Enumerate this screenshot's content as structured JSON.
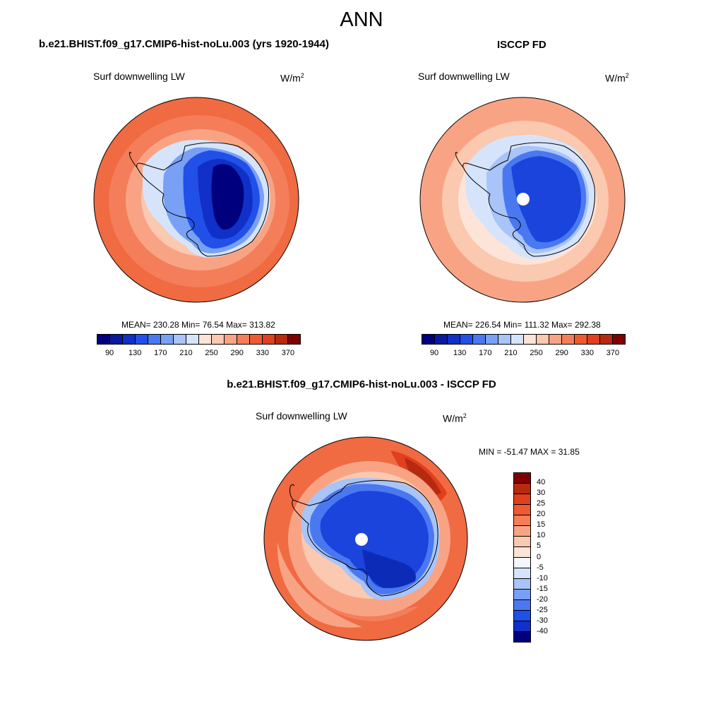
{
  "title": "ANN",
  "panels": [
    {
      "case_title": "b.e21.BHIST.f09_g17.CMIP6-hist-noLu.003 (yrs 1920-1944)",
      "variable": "Surf downwelling LW",
      "units": "W/m",
      "units_sup": "2",
      "stats": "MEAN= 230.28  Min=  76.54  Max= 313.82"
    },
    {
      "case_title": "ISCCP FD",
      "variable": "Surf downwelling LW",
      "units": "W/m",
      "units_sup": "2",
      "stats": "MEAN= 226.54  Min= 111.32  Max= 292.38"
    },
    {
      "case_title": "b.e21.BHIST.f09_g17.CMIP6-hist-noLu.003 - ISCCP FD",
      "variable": "Surf downwelling LW",
      "units": "W/m",
      "units_sup": "2",
      "stats": "MIN = -51.47 MAX =  31.85"
    }
  ],
  "colorbar_abs": {
    "labels": [
      "90",
      "130",
      "170",
      "210",
      "250",
      "290",
      "330",
      "370"
    ],
    "colors": [
      "#00007f",
      "#0a1aa0",
      "#1030c8",
      "#2050e8",
      "#4a78f0",
      "#78a0f5",
      "#a8c4f8",
      "#d6e4fb",
      "#fde4d8",
      "#fbc8b0",
      "#f8a484",
      "#f47e5a",
      "#f05a32",
      "#e0401e",
      "#b82a10",
      "#7f0000"
    ]
  },
  "colorbar_diff": {
    "labels": [
      "40",
      "30",
      "25",
      "20",
      "15",
      "10",
      "5",
      "0",
      "-5",
      "-10",
      "-15",
      "-20",
      "-25",
      "-30",
      "-40"
    ],
    "colors": [
      "#7f0000",
      "#b82a10",
      "#e0401e",
      "#f05a32",
      "#f47e5a",
      "#f8a484",
      "#fbc8b0",
      "#fde4d8",
      "#f4f6fe",
      "#d6e4fb",
      "#a8c4f8",
      "#78a0f5",
      "#4a78f0",
      "#2050e8",
      "#1030c8",
      "#00007f"
    ]
  },
  "colors": {
    "coastline": "#000000",
    "ocean_outer": "#f06a42",
    "ocean_mid": "#f8a484",
    "ocean_inner": "#fbc8b0",
    "pole_hole": "#ffffff"
  }
}
